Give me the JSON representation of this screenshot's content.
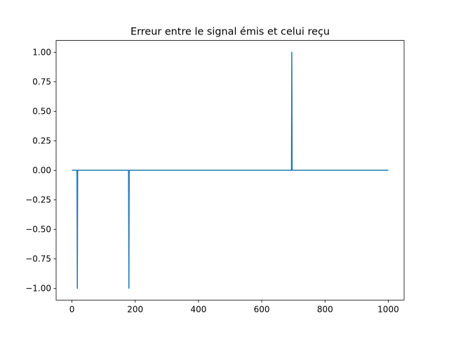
{
  "chart_data": {
    "type": "line",
    "title": "Erreur entre le signal émis et celui reçu",
    "xlabel": "",
    "ylabel": "",
    "xlim": [
      -50,
      1050
    ],
    "ylim": [
      -1.1,
      1.1
    ],
    "x_ticks": [
      0,
      200,
      400,
      600,
      800,
      1000
    ],
    "x_tick_labels": [
      "0",
      "200",
      "400",
      "600",
      "800",
      "1000"
    ],
    "y_ticks": [
      -1.0,
      -0.75,
      -0.5,
      -0.25,
      0.0,
      0.25,
      0.5,
      0.75,
      1.0
    ],
    "y_tick_labels": [
      "−1.00",
      "−0.75",
      "−0.50",
      "−0.25",
      "0.00",
      "0.25",
      "0.50",
      "0.75",
      "1.00"
    ],
    "grid": false,
    "series": [
      {
        "color": "#1f77b4",
        "x": [
          0,
          16,
          17,
          18,
          179,
          180,
          181,
          694,
          695,
          696,
          1000
        ],
        "y": [
          0,
          0,
          -1,
          0,
          0,
          -1,
          0,
          0,
          1,
          0,
          0
        ]
      }
    ]
  }
}
